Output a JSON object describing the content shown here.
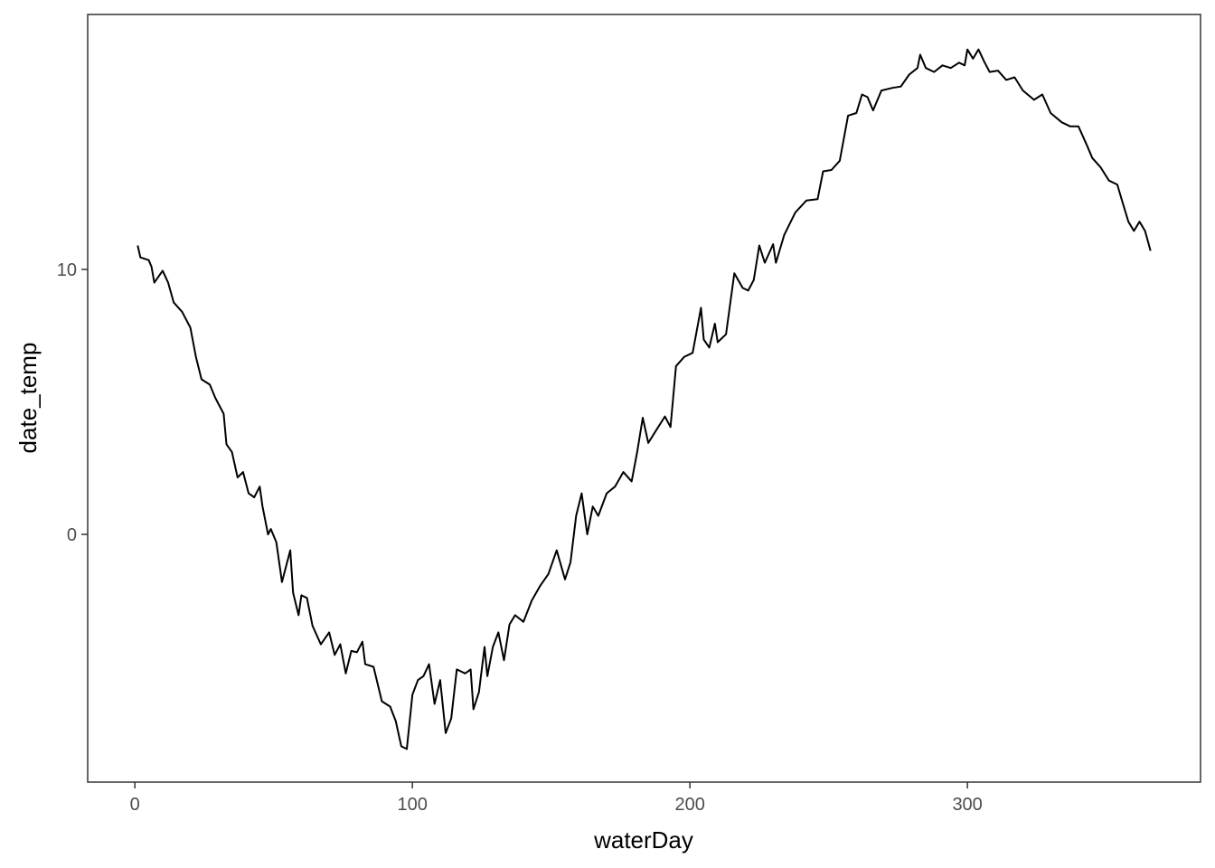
{
  "chart_data": {
    "type": "line",
    "x_label": "waterDay",
    "y_label": "date_temp",
    "xlim": [
      -17,
      384
    ],
    "ylim": [
      -9.35,
      19.62
    ],
    "xticks": [
      0,
      100,
      200,
      300
    ],
    "yticks": [
      0,
      10
    ],
    "color": "#000000",
    "x": [
      1,
      2,
      5,
      6,
      7,
      10,
      12,
      14,
      17,
      20,
      22,
      24,
      27,
      29,
      32,
      33,
      35,
      37,
      39,
      41,
      43,
      45,
      46,
      48,
      49,
      51,
      53,
      56,
      57,
      59,
      60,
      62,
      64,
      67,
      70,
      72,
      74,
      76,
      78,
      80,
      82,
      83,
      86,
      89,
      92,
      94,
      96,
      98,
      100,
      102,
      104,
      106,
      108,
      110,
      112,
      114,
      116,
      119,
      121,
      122,
      124,
      126,
      127,
      129,
      131,
      133,
      135,
      137,
      140,
      143,
      146,
      149,
      152,
      155,
      157,
      159,
      161,
      163,
      165,
      167,
      170,
      173,
      176,
      179,
      181,
      183,
      185,
      188,
      191,
      193,
      195,
      198,
      201,
      204,
      205,
      207,
      209,
      210,
      213,
      216,
      219,
      221,
      223,
      225,
      227,
      230,
      231,
      234,
      238,
      242,
      246,
      248,
      251,
      254,
      257,
      260,
      262,
      264,
      266,
      269,
      273,
      276,
      279,
      282,
      283,
      285,
      288,
      291,
      294,
      297,
      299,
      300,
      302,
      304,
      306,
      308,
      311,
      314,
      317,
      320,
      324,
      327,
      330,
      334,
      337,
      340,
      343,
      345,
      348,
      351,
      354,
      356,
      358,
      360,
      362,
      364,
      366
    ],
    "values": [
      10.9,
      10.45,
      10.35,
      10.1,
      9.5,
      9.95,
      9.5,
      8.75,
      8.4,
      7.8,
      6.7,
      5.85,
      5.65,
      5.15,
      4.55,
      3.4,
      3.1,
      2.15,
      2.35,
      1.55,
      1.4,
      1.8,
      1.05,
      0,
      0.2,
      -0.3,
      -1.8,
      -0.6,
      -2.2,
      -3.05,
      -2.3,
      -2.4,
      -3.45,
      -4.15,
      -3.7,
      -4.55,
      -4.15,
      -5.25,
      -4.4,
      -4.45,
      -4.05,
      -4.9,
      -5.0,
      -6.3,
      -6.5,
      -7.05,
      -8.0,
      -8.1,
      -6.05,
      -5.5,
      -5.35,
      -4.9,
      -6.4,
      -5.5,
      -7.5,
      -6.95,
      -5.1,
      -5.25,
      -5.1,
      -6.6,
      -5.95,
      -4.25,
      -5.35,
      -4.25,
      -3.7,
      -4.75,
      -3.4,
      -3.05,
      -3.3,
      -2.5,
      -1.95,
      -1.5,
      -0.6,
      -1.7,
      -1.05,
      0.7,
      1.55,
      0,
      1.05,
      0.7,
      1.55,
      1.8,
      2.35,
      2.0,
      3.1,
      4.4,
      3.45,
      3.95,
      4.45,
      4.05,
      6.35,
      6.7,
      6.85,
      8.55,
      7.35,
      7.05,
      7.95,
      7.25,
      7.55,
      9.85,
      9.3,
      9.2,
      9.6,
      10.9,
      10.25,
      10.95,
      10.25,
      11.3,
      12.15,
      12.6,
      12.65,
      13.7,
      13.75,
      14.1,
      15.8,
      15.9,
      16.6,
      16.5,
      16.0,
      16.75,
      16.85,
      16.9,
      17.35,
      17.6,
      18.1,
      17.6,
      17.45,
      17.7,
      17.6,
      17.8,
      17.7,
      18.3,
      17.95,
      18.3,
      17.85,
      17.45,
      17.5,
      17.15,
      17.25,
      16.75,
      16.4,
      16.6,
      15.9,
      15.55,
      15.4,
      15.4,
      14.7,
      14.2,
      13.85,
      13.35,
      13.2,
      12.5,
      11.8,
      11.45,
      11.8,
      11.45,
      10.7
    ]
  }
}
